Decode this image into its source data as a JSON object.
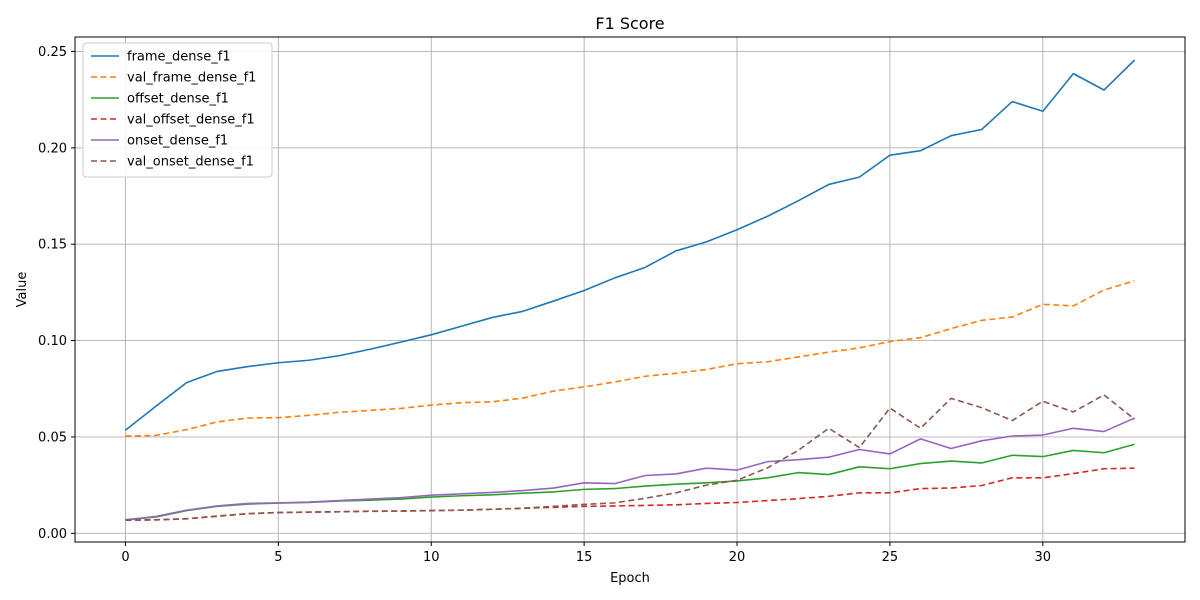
{
  "chart_data": {
    "type": "line",
    "title": "F1 Score",
    "xlabel": "Epoch",
    "ylabel": "Value",
    "xlim": [
      -1.65,
      34.65
    ],
    "ylim": [
      -0.0045,
      0.2575
    ],
    "xticks": [
      0,
      5,
      10,
      15,
      20,
      25,
      30
    ],
    "yticks": [
      0.0,
      0.05,
      0.1,
      0.15,
      0.2,
      0.25
    ],
    "ytick_labels": [
      "0.00",
      "0.05",
      "0.10",
      "0.15",
      "0.20",
      "0.25"
    ],
    "grid": true,
    "legend_position": "upper-left",
    "x": [
      0,
      1,
      2,
      3,
      4,
      5,
      6,
      7,
      8,
      9,
      10,
      11,
      12,
      13,
      14,
      15,
      16,
      17,
      18,
      19,
      20,
      21,
      22,
      23,
      24,
      25,
      26,
      27,
      28,
      29,
      30,
      31,
      32,
      33
    ],
    "series": [
      {
        "name": "frame_dense_f1",
        "color": "#1f77b4",
        "dash": "solid",
        "values": [
          0.0535,
          0.066,
          0.0782,
          0.084,
          0.0865,
          0.0885,
          0.0898,
          0.0922,
          0.0955,
          0.0992,
          0.103,
          0.1075,
          0.112,
          0.1152,
          0.1205,
          0.126,
          0.1325,
          0.138,
          0.1465,
          0.1512,
          0.1575,
          0.1645,
          0.1725,
          0.181,
          0.1848,
          0.1962,
          0.1985,
          0.2063,
          0.2095,
          0.224,
          0.219,
          0.2385,
          0.23,
          0.2455
        ]
      },
      {
        "name": "val_frame_dense_f1",
        "color": "#ff7f0e",
        "dash": "dashed",
        "values": [
          0.0505,
          0.0508,
          0.0538,
          0.0578,
          0.0598,
          0.06,
          0.0612,
          0.0628,
          0.0638,
          0.0648,
          0.0665,
          0.0678,
          0.0682,
          0.0702,
          0.0738,
          0.076,
          0.0785,
          0.0815,
          0.083,
          0.085,
          0.088,
          0.089,
          0.0915,
          0.094,
          0.0962,
          0.0995,
          0.1015,
          0.1062,
          0.1105,
          0.1122,
          0.1188,
          0.118,
          0.1262,
          0.131
        ]
      },
      {
        "name": "offset_dense_f1",
        "color": "#2ca02c",
        "dash": "solid",
        "values": [
          0.007,
          0.0085,
          0.0118,
          0.014,
          0.0152,
          0.0157,
          0.016,
          0.0168,
          0.0172,
          0.0178,
          0.0188,
          0.0195,
          0.02,
          0.0208,
          0.0215,
          0.0228,
          0.0232,
          0.0245,
          0.0255,
          0.0262,
          0.0272,
          0.0288,
          0.0315,
          0.0305,
          0.0345,
          0.0335,
          0.0362,
          0.0375,
          0.0365,
          0.0405,
          0.0398,
          0.043,
          0.0418,
          0.0462
        ]
      },
      {
        "name": "val_offset_dense_f1",
        "color": "#d62728",
        "dash": "dashed",
        "values": [
          0.0068,
          0.007,
          0.0076,
          0.0088,
          0.0102,
          0.0108,
          0.011,
          0.0112,
          0.0115,
          0.0116,
          0.0118,
          0.012,
          0.0125,
          0.013,
          0.0135,
          0.014,
          0.0142,
          0.0145,
          0.0148,
          0.0155,
          0.016,
          0.017,
          0.018,
          0.0192,
          0.021,
          0.021,
          0.0232,
          0.0235,
          0.0248,
          0.0288,
          0.0288,
          0.031,
          0.0335,
          0.0338
        ]
      },
      {
        "name": "onset_dense_f1",
        "color": "#9467bd",
        "dash": "solid",
        "values": [
          0.007,
          0.0088,
          0.012,
          0.0142,
          0.0155,
          0.0158,
          0.0162,
          0.017,
          0.0178,
          0.0185,
          0.0198,
          0.0205,
          0.0212,
          0.0222,
          0.0235,
          0.0262,
          0.0258,
          0.03,
          0.0308,
          0.0338,
          0.0328,
          0.0372,
          0.0382,
          0.0395,
          0.0435,
          0.0412,
          0.049,
          0.044,
          0.048,
          0.0505,
          0.051,
          0.0545,
          0.0528,
          0.0598
        ]
      },
      {
        "name": "val_onset_dense_f1",
        "color": "#8c564b",
        "dash": "dashed",
        "values": [
          0.0068,
          0.007,
          0.0075,
          0.009,
          0.0102,
          0.0108,
          0.011,
          0.0112,
          0.0114,
          0.0115,
          0.0118,
          0.012,
          0.0125,
          0.013,
          0.014,
          0.015,
          0.0158,
          0.0182,
          0.021,
          0.025,
          0.0275,
          0.034,
          0.043,
          0.0545,
          0.0445,
          0.065,
          0.0545,
          0.07,
          0.0652,
          0.0585,
          0.0685,
          0.063,
          0.0718,
          0.0592
        ]
      }
    ]
  }
}
